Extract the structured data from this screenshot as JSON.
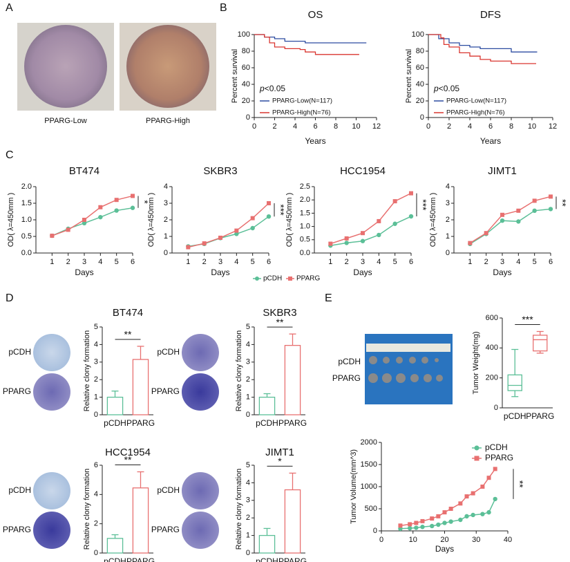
{
  "panel_labels": [
    "A",
    "B",
    "C",
    "D",
    "E"
  ],
  "panel_a": {
    "captions": [
      "PPARG-Low",
      "PPARG-High"
    ]
  },
  "chart_data": [
    {
      "type": "survival",
      "title": "OS",
      "x_label": "Years",
      "y_label": "Percent survival",
      "p_value": [
        "p",
        "<0.05"
      ],
      "xlim": [
        0,
        12
      ],
      "xticks": [
        0,
        2,
        4,
        6,
        8,
        10,
        12
      ],
      "ylim": [
        0,
        100
      ],
      "yticks": [
        0,
        20,
        40,
        60,
        80,
        100
      ],
      "series": [
        {
          "name": "PPARG-Low(N=117)",
          "color": "#2b4ba0",
          "x": [
            0,
            1,
            1,
            2,
            2,
            3,
            3,
            5,
            5,
            11
          ],
          "values": [
            100,
            100,
            97,
            97,
            95,
            95,
            92,
            92,
            90,
            90
          ]
        },
        {
          "name": "PPARG-High(N=76)",
          "color": "#d9352f",
          "x": [
            0,
            1,
            1,
            1.5,
            1.5,
            2,
            2,
            3,
            3,
            4.5,
            4.5,
            5,
            5,
            6,
            6,
            10.3
          ],
          "values": [
            100,
            100,
            97,
            97,
            90,
            90,
            85,
            85,
            83,
            83,
            82,
            82,
            79,
            79,
            76,
            76
          ]
        }
      ]
    },
    {
      "type": "survival",
      "title": "DFS",
      "x_label": "Years",
      "y_label": "Percent survival",
      "p_value": [
        "p",
        "<0.05"
      ],
      "xlim": [
        0,
        12
      ],
      "xticks": [
        0,
        2,
        4,
        6,
        8,
        10,
        12
      ],
      "ylim": [
        0,
        100
      ],
      "yticks": [
        0,
        20,
        40,
        60,
        80,
        100
      ],
      "series": [
        {
          "name": "PPARG-Low(N=117)",
          "color": "#2b4ba0",
          "x": [
            0,
            1,
            1,
            2,
            2,
            3,
            3,
            4,
            4,
            5,
            5,
            8,
            8,
            10.5
          ],
          "values": [
            100,
            100,
            95,
            95,
            90,
            90,
            87,
            87,
            85,
            85,
            83,
            83,
            79,
            79
          ]
        },
        {
          "name": "PPARG-High(N=76)",
          "color": "#d9352f",
          "x": [
            0,
            1.2,
            1.2,
            1.5,
            1.5,
            2,
            2,
            3,
            3,
            4,
            4,
            5,
            5,
            6,
            6,
            8,
            8,
            10.4
          ],
          "values": [
            100,
            100,
            96,
            96,
            88,
            88,
            85,
            85,
            78,
            78,
            74,
            74,
            70,
            70,
            68,
            68,
            65,
            65
          ]
        }
      ]
    },
    {
      "type": "line",
      "title": "BT474",
      "x_label": "Days",
      "y_label": "OD( λ=450mm )",
      "significance": "*",
      "x": [
        1,
        2,
        3,
        4,
        5,
        6
      ],
      "xlim": [
        0,
        6
      ],
      "xticks": [
        1,
        2,
        3,
        4,
        5,
        6
      ],
      "ylim": [
        0,
        2
      ],
      "yticks": [
        {
          "value": 0,
          "label": "0.0"
        },
        0.5,
        {
          "value": 1,
          "label": "1.0"
        },
        1.5,
        {
          "value": 2,
          "label": "2.0"
        }
      ],
      "series": [
        {
          "name": "pCDH",
          "color": "#5bbf97",
          "marker": "circle",
          "values": [
            0.52,
            0.73,
            0.9,
            1.08,
            1.28,
            1.36
          ]
        },
        {
          "name": "PPARG",
          "color": "#e87070",
          "marker": "square",
          "values": [
            0.52,
            0.7,
            1.0,
            1.38,
            1.6,
            1.72
          ]
        }
      ]
    },
    {
      "type": "line",
      "title": "SKBR3",
      "x_label": "Days",
      "y_label": "OD( λ=450mm )",
      "significance": "***",
      "x": [
        1,
        2,
        3,
        4,
        5,
        6
      ],
      "xlim": [
        0,
        6
      ],
      "xticks": [
        1,
        2,
        3,
        4,
        5,
        6
      ],
      "ylim": [
        0,
        4
      ],
      "yticks": [
        0,
        1,
        2,
        3,
        4
      ],
      "series": [
        {
          "name": "pCDH",
          "color": "#5bbf97",
          "marker": "circle",
          "values": [
            0.4,
            0.55,
            0.9,
            1.15,
            1.5,
            2.2
          ]
        },
        {
          "name": "PPARG",
          "color": "#e87070",
          "marker": "square",
          "values": [
            0.35,
            0.58,
            0.92,
            1.35,
            2.1,
            3.0
          ]
        }
      ]
    },
    {
      "type": "line",
      "title": "HCC1954",
      "x_label": "Days",
      "y_label": "OD( λ=450mm )",
      "significance": "***",
      "x": [
        1,
        2,
        3,
        4,
        5,
        6
      ],
      "xlim": [
        0,
        6
      ],
      "xticks": [
        1,
        2,
        3,
        4,
        5,
        6
      ],
      "ylim": [
        0,
        2.5
      ],
      "yticks": [
        {
          "value": 0,
          "label": "0.0"
        },
        0.5,
        {
          "value": 1,
          "label": "1.0"
        },
        1.5,
        {
          "value": 2,
          "label": "2.0"
        },
        2.5
      ],
      "series": [
        {
          "name": "pCDH",
          "color": "#5bbf97",
          "marker": "circle",
          "values": [
            0.28,
            0.38,
            0.45,
            0.68,
            1.1,
            1.38
          ]
        },
        {
          "name": "PPARG",
          "color": "#e87070",
          "marker": "square",
          "values": [
            0.35,
            0.55,
            0.75,
            1.2,
            1.95,
            2.25
          ]
        }
      ]
    },
    {
      "type": "line",
      "title": "JIMT1",
      "x_label": "Days",
      "y_label": "OD( λ=450mm )",
      "significance": "**",
      "x": [
        1,
        2,
        3,
        4,
        5,
        6
      ],
      "xlim": [
        0,
        6
      ],
      "xticks": [
        1,
        2,
        3,
        4,
        5,
        6
      ],
      "ylim": [
        0,
        4
      ],
      "yticks": [
        0,
        1,
        2,
        3,
        4
      ],
      "series": [
        {
          "name": "pCDH",
          "color": "#5bbf97",
          "marker": "circle",
          "values": [
            0.55,
            1.15,
            1.95,
            1.9,
            2.55,
            2.65
          ]
        },
        {
          "name": "PPARG",
          "color": "#e87070",
          "marker": "square",
          "values": [
            0.6,
            1.2,
            2.3,
            2.55,
            3.15,
            3.4
          ]
        }
      ]
    },
    {
      "type": "bar",
      "title": "BT474",
      "y_label": "Relative clony formation",
      "significance": "**",
      "image_labels": [
        "pCDH",
        "PPARG"
      ],
      "categories": [
        "pCDH",
        "PPARG"
      ],
      "values": [
        1.0,
        3.15
      ],
      "errors": [
        0.35,
        0.75
      ],
      "colors": [
        "#5bbf97",
        "#e87070"
      ],
      "ylim": [
        0,
        5
      ],
      "yticks": [
        0,
        1,
        2,
        3,
        4,
        5
      ]
    },
    {
      "type": "bar",
      "title": "SKBR3",
      "y_label": "Relative clony formation",
      "significance": "**",
      "image_labels": [
        "pCDH",
        "PPARG"
      ],
      "categories": [
        "pCDH",
        "PPARG"
      ],
      "values": [
        1.0,
        3.95
      ],
      "errors": [
        0.2,
        0.65
      ],
      "colors": [
        "#5bbf97",
        "#e87070"
      ],
      "ylim": [
        0,
        5
      ],
      "yticks": [
        0,
        1,
        2,
        3,
        4,
        5
      ]
    },
    {
      "type": "bar",
      "title": "HCC1954",
      "y_label": "Relative clony formation",
      "significance": "**",
      "image_labels": [
        "pCDH",
        "PPARG"
      ],
      "categories": [
        "pCDH",
        "PPARG"
      ],
      "values": [
        1.0,
        4.45
      ],
      "errors": [
        0.25,
        1.1
      ],
      "colors": [
        "#5bbf97",
        "#e87070"
      ],
      "ylim": [
        0,
        6
      ],
      "yticks": [
        0,
        2,
        4,
        6
      ]
    },
    {
      "type": "bar",
      "title": "JIMT1",
      "y_label": "Relative clony formation",
      "significance": "*",
      "image_labels": [
        "pCDH",
        "PPARG"
      ],
      "categories": [
        "pCDH",
        "PPARG"
      ],
      "values": [
        1.0,
        3.6
      ],
      "errors": [
        0.4,
        0.95
      ],
      "colors": [
        "#5bbf97",
        "#e87070"
      ],
      "ylim": [
        0,
        5
      ],
      "yticks": [
        0,
        1,
        2,
        3,
        4,
        5
      ]
    },
    {
      "type": "box",
      "y_label": "Tumor Weight(mg)",
      "significance": "***",
      "image_labels": [
        "pCDH",
        "PPARG"
      ],
      "categories": [
        "pCDH",
        "PPARG"
      ],
      "colors": [
        "#5bbf97",
        "#e87070"
      ],
      "boxes": [
        {
          "min": 75,
          "q1": 115,
          "median": 150,
          "q3": 220,
          "max": 390
        },
        {
          "min": 365,
          "q1": 380,
          "median": 455,
          "q3": 485,
          "max": 510
        }
      ],
      "ylim": [
        0,
        600
      ],
      "yticks": [
        0,
        200,
        400,
        600
      ]
    },
    {
      "type": "line",
      "x_label": "Days",
      "y_label": "Tumor Volume(mm^3)",
      "significance": "**",
      "legend": "upper right",
      "x": [
        6,
        9,
        11,
        13,
        16,
        18,
        20,
        22,
        25,
        27,
        29,
        32,
        34,
        36
      ],
      "xlim": [
        0,
        40
      ],
      "xticks": [
        0,
        10,
        20,
        30,
        40
      ],
      "ylim": [
        0,
        2000
      ],
      "yticks": [
        0,
        500,
        1000,
        1500,
        2000
      ],
      "series": [
        {
          "name": "pCDH",
          "color": "#5bbf97",
          "marker": "circle",
          "values": [
            50,
            60,
            70,
            90,
            110,
            140,
            180,
            210,
            250,
            330,
            360,
            380,
            420,
            720
          ]
        },
        {
          "name": "PPARG",
          "color": "#e87070",
          "marker": "square",
          "values": [
            120,
            150,
            180,
            220,
            280,
            330,
            420,
            500,
            620,
            780,
            850,
            1000,
            1200,
            1400
          ]
        }
      ]
    }
  ]
}
